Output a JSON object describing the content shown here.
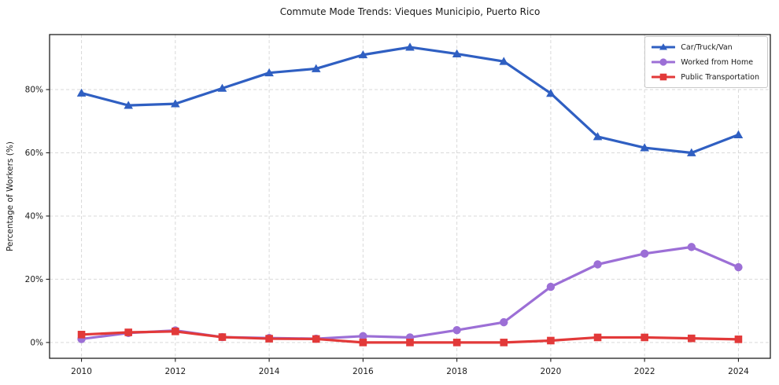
{
  "chart_data": {
    "type": "line",
    "title": "Commute Mode Trends: Vieques Municipio, Puerto Rico",
    "xlabel": "",
    "ylabel": "Percentage of Workers (%)",
    "x": [
      2010,
      2011,
      2012,
      2013,
      2014,
      2015,
      2016,
      2017,
      2018,
      2019,
      2020,
      2021,
      2022,
      2023,
      2024
    ],
    "series": [
      {
        "name": "Car/Truck/Van",
        "color": "#2f5fc2",
        "marker": "triangle",
        "values": [
          78.9,
          75.0,
          75.5,
          80.4,
          85.3,
          86.6,
          91.0,
          93.4,
          91.3,
          88.9,
          78.8,
          65.1,
          61.6,
          60.0,
          65.7
        ]
      },
      {
        "name": "Worked from Home",
        "color": "#9c6fd6",
        "marker": "circle",
        "values": [
          1.1,
          3.0,
          3.8,
          1.7,
          1.4,
          1.2,
          2.0,
          1.6,
          3.9,
          6.4,
          17.6,
          24.7,
          28.1,
          30.2,
          23.8
        ]
      },
      {
        "name": "Public Transportation",
        "color": "#e23939",
        "marker": "square",
        "values": [
          2.5,
          3.2,
          3.5,
          1.7,
          1.2,
          1.1,
          0.0,
          0.0,
          0.0,
          0.0,
          0.6,
          1.6,
          1.6,
          1.3,
          1.0
        ]
      }
    ],
    "xticks": [
      2010,
      2012,
      2014,
      2016,
      2018,
      2020,
      2022,
      2024
    ],
    "xtick_labels": [
      "2010",
      "2012",
      "2014",
      "2016",
      "2018",
      "2020",
      "2022",
      "2024"
    ],
    "yticks": [
      0,
      20,
      40,
      60,
      80
    ],
    "ytick_labels": [
      "0%",
      "20%",
      "40%",
      "60%",
      "80%"
    ],
    "xlim": [
      2009.32,
      2024.68
    ],
    "ylim": [
      -5.0,
      97.4
    ],
    "grid": true,
    "legend_position": "upper right"
  },
  "style": {
    "grid_color": "#d9d9d9",
    "spine_color": "#1f1f1f",
    "tick_text_color": "#1a1a1a",
    "background_color": "#ffffff"
  }
}
